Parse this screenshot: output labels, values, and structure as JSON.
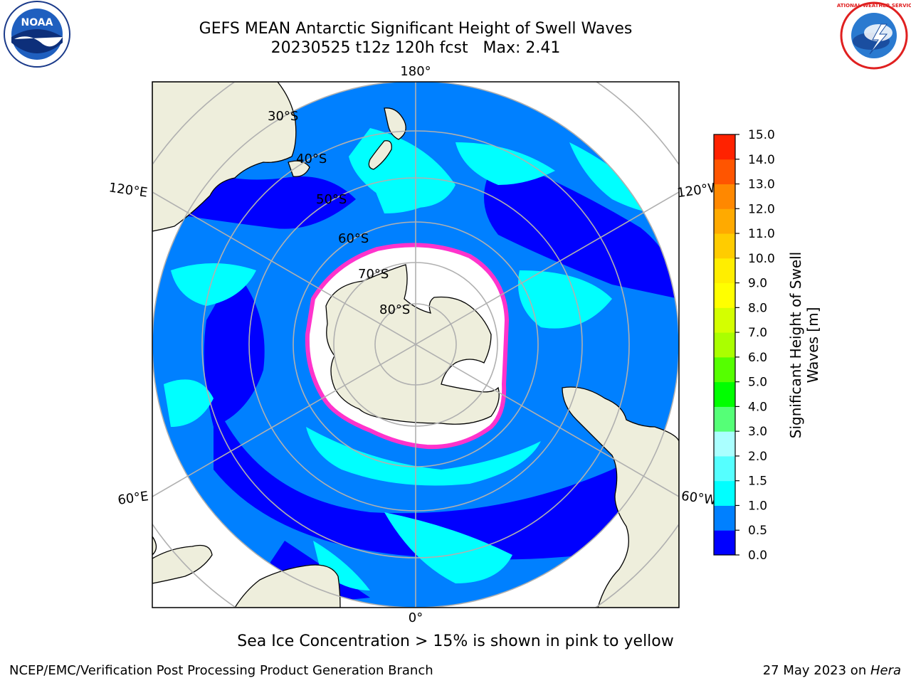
{
  "header": {
    "title_line1": "GEFS MEAN Antarctic Significant Height of Swell Waves",
    "title_line2": "20230525 t12z 120h fcst   Max: 2.41"
  },
  "map": {
    "lon_labels": {
      "top": "180°",
      "bottom": "0°",
      "upper_left": "120°E",
      "upper_right": "120°W",
      "lower_left": "60°E",
      "lower_right": "60°W"
    },
    "lat_labels": [
      "30°S",
      "40°S",
      "50°S",
      "60°S",
      "70°S",
      "80°S"
    ],
    "colors": {
      "land": "#eeeedc",
      "ocean_low": "#0000ff",
      "ocean_mid": "#0080ff",
      "ocean_high": "#00ffff",
      "ocean_light": "#55ffff",
      "ice_edge": "#ff33cc",
      "grid": "#b0b0b0"
    }
  },
  "colorbar": {
    "label_line1": "Significant Height of Swell",
    "label_line2": "Waves [m]",
    "ticks": [
      "0.0",
      "0.5",
      "1.0",
      "1.5",
      "2.0",
      "3.0",
      "4.0",
      "5.0",
      "6.0",
      "7.0",
      "8.0",
      "9.0",
      "10.0",
      "11.0",
      "12.0",
      "13.0",
      "14.0",
      "15.0"
    ],
    "colors": [
      "#0000ff",
      "#0080ff",
      "#00ffff",
      "#55ffff",
      "#aaffff",
      "#55ff77",
      "#00ff00",
      "#55ff00",
      "#aaff00",
      "#d4ff00",
      "#ffff00",
      "#ffee00",
      "#ffcc00",
      "#ffaa00",
      "#ff8800",
      "#ff5500",
      "#ff2200"
    ]
  },
  "caption": "Sea Ice Concentration > 15% is shown in pink to yellow",
  "footer": {
    "left": "NCEP/EMC/Verification Post Processing Product Generation Branch",
    "right_prefix": "27 May 2023 on ",
    "right_host": "Hera"
  },
  "logos": {
    "noaa_text": "NOAA",
    "nws_text": "NATIONAL WEATHER SERVICE"
  }
}
